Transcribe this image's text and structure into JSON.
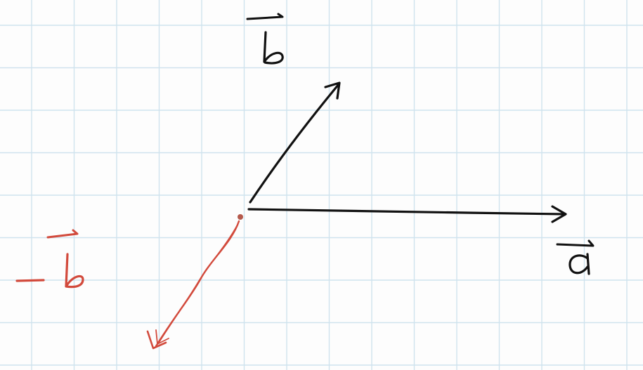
{
  "diagram": {
    "background_color": "#fdfdfd",
    "grid_color": "#cfe3ee",
    "ink_color": "#111111",
    "accent_color": "#d24a3c",
    "vectors": [
      {
        "id": "b",
        "label": "b",
        "color": "#111111",
        "direction": "up-right"
      },
      {
        "id": "a",
        "label": "a",
        "color": "#111111",
        "direction": "right"
      },
      {
        "id": "neg-b",
        "label": "b",
        "prefix": "-",
        "color": "#d24a3c",
        "direction": "down-left"
      }
    ]
  }
}
